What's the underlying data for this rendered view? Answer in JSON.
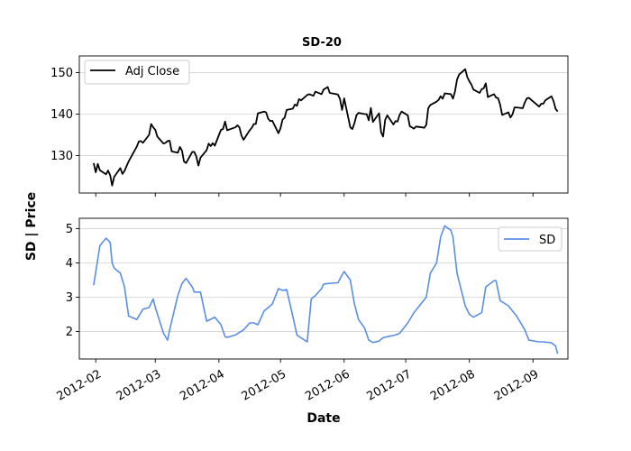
{
  "chart_data": {
    "type": "line",
    "title": "SD-20",
    "xlabel": "Date",
    "ylabel": "SD | Price",
    "x_ticks": [
      "2012-02",
      "2012-03",
      "2012-04",
      "2012-05",
      "2012-06",
      "2012-07",
      "2012-08",
      "2012-09"
    ],
    "x_range": [
      "2012-01-24",
      "2012-09-18"
    ],
    "grid": "horizontal",
    "panels": [
      {
        "ylim": [
          121,
          154
        ],
        "y_ticks": [
          130,
          140,
          150
        ],
        "legend_position": "top-left",
        "series": [
          {
            "name": "Adj Close",
            "color": "#000000",
            "x": [
              "2012-01-31",
              "2012-02-01",
              "2012-02-02",
              "2012-02-03",
              "2012-02-06",
              "2012-02-07",
              "2012-02-08",
              "2012-02-09",
              "2012-02-10",
              "2012-02-13",
              "2012-02-14",
              "2012-02-15",
              "2012-02-16",
              "2012-02-17",
              "2012-02-21",
              "2012-02-22",
              "2012-02-23",
              "2012-02-24",
              "2012-02-27",
              "2012-02-28",
              "2012-02-29",
              "2012-03-01",
              "2012-03-02",
              "2012-03-05",
              "2012-03-06",
              "2012-03-07",
              "2012-03-08",
              "2012-03-09",
              "2012-03-12",
              "2012-03-13",
              "2012-03-14",
              "2012-03-15",
              "2012-03-16",
              "2012-03-19",
              "2012-03-20",
              "2012-03-21",
              "2012-03-22",
              "2012-03-23",
              "2012-03-26",
              "2012-03-27",
              "2012-03-28",
              "2012-03-29",
              "2012-03-30",
              "2012-04-02",
              "2012-04-03",
              "2012-04-04",
              "2012-04-05",
              "2012-04-09",
              "2012-04-10",
              "2012-04-11",
              "2012-04-12",
              "2012-04-13",
              "2012-04-16",
              "2012-04-17",
              "2012-04-18",
              "2012-04-19",
              "2012-04-20",
              "2012-04-23",
              "2012-04-24",
              "2012-04-25",
              "2012-04-26",
              "2012-04-27",
              "2012-04-30",
              "2012-05-01",
              "2012-05-02",
              "2012-05-03",
              "2012-05-04",
              "2012-05-07",
              "2012-05-08",
              "2012-05-09",
              "2012-05-10",
              "2012-05-11",
              "2012-05-14",
              "2012-05-15",
              "2012-05-16",
              "2012-05-17",
              "2012-05-18",
              "2012-05-21",
              "2012-05-22",
              "2012-05-23",
              "2012-05-24",
              "2012-05-25",
              "2012-05-29",
              "2012-05-30",
              "2012-05-31",
              "2012-06-01",
              "2012-06-04",
              "2012-06-05",
              "2012-06-06",
              "2012-06-07",
              "2012-06-08",
              "2012-06-11",
              "2012-06-12",
              "2012-06-13",
              "2012-06-14",
              "2012-06-15",
              "2012-06-18",
              "2012-06-19",
              "2012-06-20",
              "2012-06-21",
              "2012-06-22",
              "2012-06-25",
              "2012-06-26",
              "2012-06-27",
              "2012-06-28",
              "2012-06-29",
              "2012-07-02",
              "2012-07-03",
              "2012-07-05",
              "2012-07-06",
              "2012-07-09",
              "2012-07-10",
              "2012-07-11",
              "2012-07-12",
              "2012-07-13",
              "2012-07-16",
              "2012-07-17",
              "2012-07-18",
              "2012-07-19",
              "2012-07-20",
              "2012-07-23",
              "2012-07-24",
              "2012-07-25",
              "2012-07-26",
              "2012-07-27",
              "2012-07-30",
              "2012-07-31",
              "2012-08-01",
              "2012-08-02",
              "2012-08-03",
              "2012-08-06",
              "2012-08-07",
              "2012-08-08",
              "2012-08-09",
              "2012-08-10",
              "2012-08-13",
              "2012-08-14",
              "2012-08-15",
              "2012-08-16",
              "2012-08-17",
              "2012-08-20",
              "2012-08-21",
              "2012-08-22",
              "2012-08-23",
              "2012-08-24",
              "2012-08-27",
              "2012-08-28",
              "2012-08-29",
              "2012-08-30",
              "2012-08-31",
              "2012-09-04",
              "2012-09-05",
              "2012-09-06",
              "2012-09-07",
              "2012-09-10",
              "2012-09-11",
              "2012-09-12",
              "2012-09-13"
            ],
            "values": [
              128.2,
              126.0,
              128.0,
              126.5,
              125.5,
              126.4,
              125.3,
              122.8,
              124.9,
              127.0,
              125.6,
              126.3,
              127.5,
              128.6,
              132.2,
              133.4,
              133.5,
              133.1,
              135.0,
              137.6,
              136.8,
              136.2,
              134.6,
              132.9,
              133.1,
              133.5,
              133.6,
              131.0,
              130.7,
              132.1,
              131.2,
              128.6,
              128.2,
              130.9,
              130.9,
              129.8,
              127.6,
              129.5,
              131.3,
              132.9,
              132.3,
              133.0,
              132.4,
              136.2,
              136.4,
              138.2,
              136.1,
              136.8,
              137.3,
              136.8,
              134.8,
              133.8,
              136.1,
              136.7,
              137.6,
              137.6,
              140.2,
              140.6,
              140.4,
              138.9,
              138.3,
              138.4,
              135.4,
              136.6,
              138.7,
              139.1,
              141.0,
              141.3,
              142.3,
              142.0,
              143.6,
              143.3,
              144.6,
              144.8,
              144.6,
              144.4,
              145.4,
              144.8,
              145.9,
              146.2,
              146.5,
              145.1,
              144.7,
              143.6,
              141.0,
              143.8,
              136.8,
              136.4,
              137.8,
              139.7,
              140.3,
              140.0,
              140.0,
              138.5,
              141.5,
              138.1,
              140.2,
              135.6,
              134.6,
              138.6,
              139.7,
              137.5,
              138.3,
              138.2,
              139.8,
              140.6,
              139.7,
              137.1,
              136.5,
              137.0,
              136.8,
              136.7,
              137.4,
              141.4,
              142.2,
              143.0,
              143.4,
              144.3,
              143.7,
              145.0,
              144.8,
              143.7,
              145.4,
              148.3,
              149.5,
              150.8,
              148.9,
              147.9,
              147.1,
              145.9,
              145.1,
              146.0,
              146.2,
              147.4,
              144.1,
              144.8,
              144.0,
              143.8,
              142.3,
              139.8,
              140.4,
              139.2,
              139.9,
              141.6,
              141.6,
              141.4,
              142.8,
              143.8,
              143.9,
              143.5,
              141.8,
              142.5,
              142.5,
              143.3,
              144.3,
              143.1,
              141.3,
              140.6
            ]
          }
        ]
      },
      {
        "ylim": [
          1.2,
          5.3
        ],
        "y_ticks": [
          2,
          3,
          4,
          5
        ],
        "legend_position": "top-right",
        "series": [
          {
            "name": "SD",
            "color": "#5b8fe5",
            "x": [
              "2012-01-31",
              "2012-02-03",
              "2012-02-06",
              "2012-02-08",
              "2012-02-09",
              "2012-02-10",
              "2012-02-13",
              "2012-02-15",
              "2012-02-17",
              "2012-02-21",
              "2012-02-24",
              "2012-02-27",
              "2012-02-29",
              "2012-03-01",
              "2012-03-05",
              "2012-03-07",
              "2012-03-08",
              "2012-03-12",
              "2012-03-14",
              "2012-03-16",
              "2012-03-19",
              "2012-03-20",
              "2012-03-23",
              "2012-03-26",
              "2012-03-30",
              "2012-04-02",
              "2012-04-04",
              "2012-04-05",
              "2012-04-09",
              "2012-04-13",
              "2012-04-16",
              "2012-04-18",
              "2012-04-20",
              "2012-04-23",
              "2012-04-27",
              "2012-04-30",
              "2012-05-02",
              "2012-05-04",
              "2012-05-07",
              "2012-05-09",
              "2012-05-11",
              "2012-05-14",
              "2012-05-16",
              "2012-05-18",
              "2012-05-21",
              "2012-05-22",
              "2012-05-24",
              "2012-05-29",
              "2012-05-31",
              "2012-06-01",
              "2012-06-04",
              "2012-06-06",
              "2012-06-08",
              "2012-06-11",
              "2012-06-13",
              "2012-06-15",
              "2012-06-18",
              "2012-06-20",
              "2012-06-22",
              "2012-06-26",
              "2012-06-28",
              "2012-07-02",
              "2012-07-05",
              "2012-07-09",
              "2012-07-11",
              "2012-07-13",
              "2012-07-16",
              "2012-07-18",
              "2012-07-20",
              "2012-07-23",
              "2012-07-24",
              "2012-07-26",
              "2012-07-30",
              "2012-08-01",
              "2012-08-03",
              "2012-08-07",
              "2012-08-09",
              "2012-08-13",
              "2012-08-14",
              "2012-08-16",
              "2012-08-20",
              "2012-08-22",
              "2012-08-24",
              "2012-08-28",
              "2012-08-30",
              "2012-09-04",
              "2012-09-06",
              "2012-09-10",
              "2012-09-12",
              "2012-09-13"
            ],
            "values": [
              3.35,
              4.5,
              4.72,
              4.6,
              4.0,
              3.85,
              3.7,
              3.3,
              2.45,
              2.35,
              2.65,
              2.7,
              2.95,
              2.7,
              1.95,
              1.75,
              2.05,
              3.05,
              3.4,
              3.55,
              3.3,
              3.15,
              3.15,
              2.3,
              2.42,
              2.2,
              1.85,
              1.83,
              1.9,
              2.05,
              2.25,
              2.25,
              2.2,
              2.6,
              2.8,
              3.25,
              3.2,
              3.22,
              2.45,
              1.9,
              1.82,
              1.7,
              2.95,
              3.05,
              3.25,
              3.38,
              3.4,
              3.42,
              3.65,
              3.75,
              3.5,
              2.8,
              2.35,
              2.1,
              1.75,
              1.68,
              1.72,
              1.82,
              1.85,
              1.9,
              1.95,
              2.25,
              2.55,
              2.85,
              3.0,
              3.7,
              4.0,
              4.75,
              5.08,
              4.95,
              4.75,
              3.7,
              2.75,
              2.5,
              2.42,
              2.55,
              3.3,
              3.48,
              3.48,
              2.9,
              2.75,
              2.6,
              2.45,
              2.05,
              1.75,
              1.7,
              1.7,
              1.67,
              1.58,
              1.35
            ]
          }
        ]
      }
    ]
  }
}
